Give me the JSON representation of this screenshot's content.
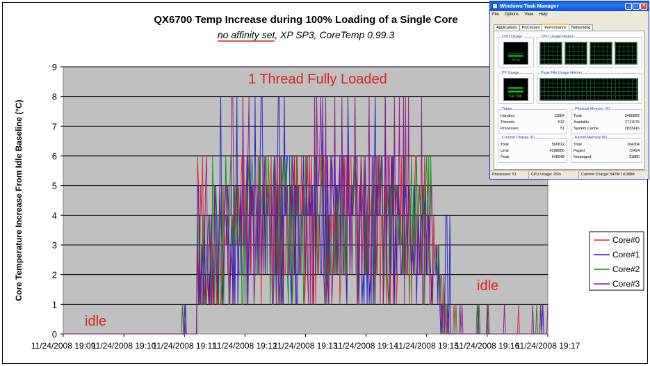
{
  "chart_data": {
    "type": "line",
    "title": "QX6700 Temp Increase during 100% Loading of a Single Core",
    "subtitle": "no affinity set, XP SP3, CoreTemp 0.99.3",
    "subtitle_underlined": "no affinity set",
    "subtitle_rest": ", XP SP3, CoreTemp 0.99.3",
    "ylabel": "Core Temperature Increase From Idle Baseline (°C)",
    "xlabel": "",
    "ylim": [
      0,
      9
    ],
    "yticks": [
      "0",
      "1",
      "2",
      "3",
      "4",
      "5",
      "6",
      "7",
      "8",
      "9"
    ],
    "xlim": [
      0,
      8
    ],
    "xticks": [
      "11/24/2008 19:09",
      "11/24/2008 19:10",
      "11/24/2008 19:11",
      "11/24/2008 19:12",
      "11/24/2008 19:13",
      "11/24/2008 19:14",
      "11/24/2008 19:15",
      "11/24/2008 19:16",
      "11/24/2008 19:17"
    ],
    "x_unit": "minutes after 11/24/2008 19:09",
    "grid": true,
    "plot_background": "#c0c0c0",
    "legend_position": "right",
    "annotations": [
      {
        "text": "1 Thread Fully Loaded",
        "color": "#e02020"
      },
      {
        "text": "idle",
        "color": "#e02020"
      },
      {
        "text": "idle",
        "color": "#e02020"
      }
    ],
    "series": [
      {
        "name": "Core#0",
        "color": "#e02020",
        "seed": 11
      },
      {
        "name": "Core#1",
        "color": "#1818c8",
        "seed": 23
      },
      {
        "name": "Core#2",
        "color": "#108a10",
        "seed": 37
      },
      {
        "name": "Core#3",
        "color": "#8a108a",
        "seed": 53
      }
    ],
    "load_profile": {
      "idle_start": [
        0,
        2.2
      ],
      "ramp": [
        2.2,
        2.5
      ],
      "load": [
        2.5,
        6.1
      ],
      "idle_end": [
        6.1,
        8
      ],
      "base_levels": {
        "early": 3,
        "mid": 4,
        "late": 3
      },
      "peak": 8
    }
  },
  "task_manager": {
    "title": "Windows Task Manager",
    "menu": [
      "File",
      "Options",
      "View",
      "Help"
    ],
    "tabs": [
      "Applications",
      "Processes",
      "Performance",
      "Networking"
    ],
    "active_tab": "Performance",
    "cpu_usage_label": "CPU Usage",
    "cpu_usage_value": "25 %",
    "cpu_usage_fraction": 0.25,
    "cpu_history_label": "CPU Usage History",
    "pf_usage_label": "PF Usage",
    "pf_usage_value": "547 MB",
    "pf_history_label": "Page File Usage History",
    "totals": {
      "label": "Totals",
      "rows": [
        [
          "Handles",
          "11584"
        ],
        [
          "Threads",
          "632"
        ],
        [
          "Processes",
          "51"
        ]
      ]
    },
    "physical_memory": {
      "label": "Physical Memory (K)",
      "rows": [
        [
          "Total",
          "3406892"
        ],
        [
          "Available",
          "2711076"
        ],
        [
          "System Cache",
          "2833416"
        ]
      ]
    },
    "commit_charge": {
      "label": "Commit Charge (K)",
      "rows": [
        [
          "Total",
          "560812"
        ],
        [
          "Limit",
          "4288856"
        ],
        [
          "Peak",
          "648948"
        ]
      ]
    },
    "kernel_memory": {
      "label": "Kernel Memory (K)",
      "rows": [
        [
          "Total",
          "104304"
        ],
        [
          "Paged",
          "72424"
        ],
        [
          "Nonpaged",
          "31880"
        ]
      ]
    },
    "status": {
      "processes": "Processes: 51",
      "cpu": "CPU Usage: 25%",
      "commit": "Commit Charge: 547M / 4188M"
    }
  }
}
